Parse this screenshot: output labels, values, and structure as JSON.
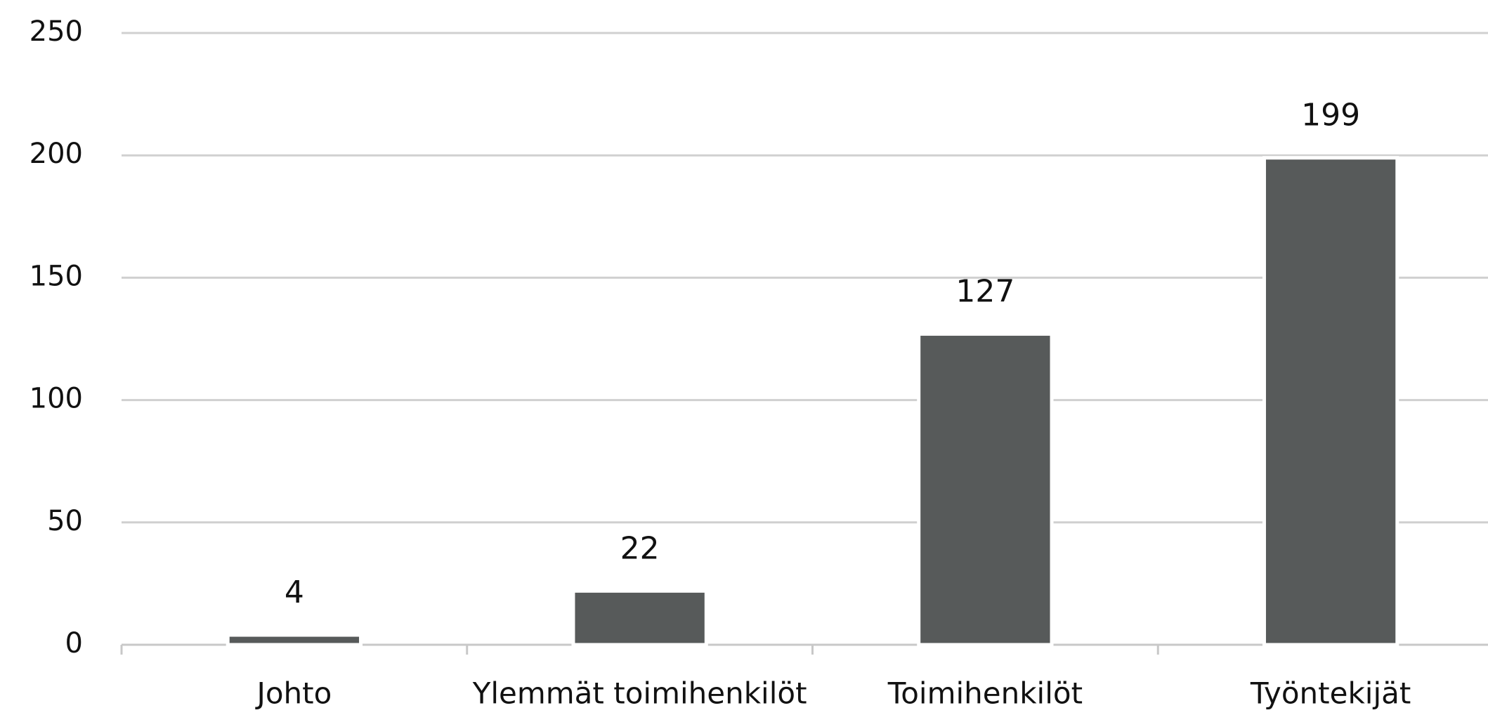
{
  "chart_data": {
    "type": "bar",
    "categories": [
      "Johto",
      "Ylemmät toimihenkilöt",
      "Toimihenkilöt",
      "Työntekijät"
    ],
    "values": [
      4,
      22,
      127,
      199
    ],
    "color": "#575a5a",
    "ylim": [
      0,
      250
    ],
    "yticks": [
      0,
      50,
      100,
      150,
      200,
      250
    ],
    "grid": true
  }
}
